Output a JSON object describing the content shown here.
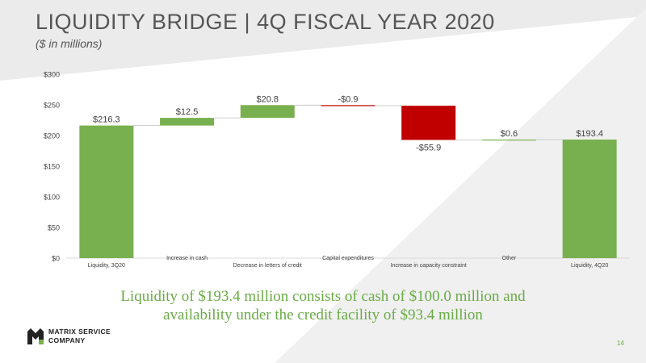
{
  "slide": {
    "title": "LIQUIDITY BRIDGE | 4Q FISCAL YEAR 2020",
    "subtitle": "($ in millions)",
    "caption_line1": "Liquidity of $193.4 million consists of cash of $100.0 million and",
    "caption_line2": "availability under the credit facility of $93.4 million",
    "logo_line1": "MATRIX SERVICE",
    "logo_line2": "COMPANY",
    "page_number": "14"
  },
  "colors": {
    "green": "#79b04f",
    "red": "#c00000",
    "gray_text": "#555555",
    "caption": "#6aab46"
  },
  "chart_data": {
    "type": "bar",
    "subtype": "waterfall",
    "ylim": [
      0,
      300
    ],
    "yticks": [
      0,
      50,
      100,
      150,
      200,
      250,
      300
    ],
    "ytick_labels": [
      "$0",
      "$50",
      "$100",
      "$150",
      "$200",
      "$250",
      "$300"
    ],
    "grid": false,
    "categories": [
      "Liquidity, 3Q20",
      "Increase in cash",
      "Decrease in letters of credit",
      "Capital expenditures",
      "Increase in capacity constraint",
      "Other",
      "Liquidity, 4Q20"
    ],
    "values": [
      216.3,
      12.5,
      20.8,
      -0.9,
      -55.9,
      0.6,
      193.4
    ],
    "kinds": [
      "total",
      "delta",
      "delta",
      "delta",
      "delta",
      "delta",
      "total"
    ],
    "data_labels": [
      "$216.3",
      "$12.5",
      "$20.8",
      "-$0.9",
      "-$55.9",
      "$0.6",
      "$193.4"
    ]
  }
}
